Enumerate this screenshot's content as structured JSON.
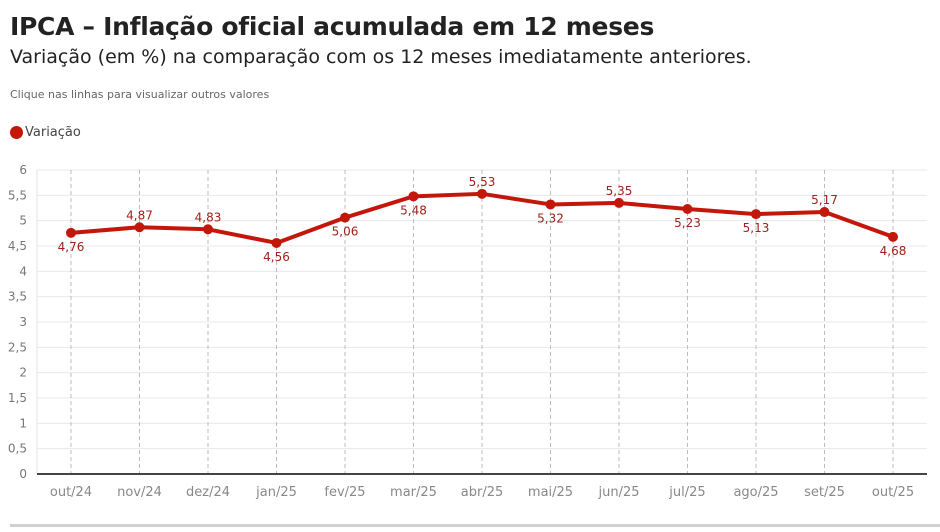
{
  "header": {
    "title": "IPCA – Inflação oficial acumulada em 12 meses",
    "subtitle": "Variação (em %) na comparação com os 12 meses imediatamente anteriores.",
    "hint": "Clique nas linhas para visualizar outros valores"
  },
  "legend": {
    "items": [
      {
        "label": "Variação",
        "color": "#c4170c"
      }
    ]
  },
  "chart_data": {
    "type": "line",
    "title": "IPCA – Inflação oficial acumulada em 12 meses",
    "subtitle": "Variação (em %) na comparação com os 12 meses imediatamente anteriores.",
    "xlabel": "",
    "ylabel": "",
    "categories": [
      "out/24",
      "nov/24",
      "dez/24",
      "jan/25",
      "fev/25",
      "mar/25",
      "abr/25",
      "mai/25",
      "jun/25",
      "jul/25",
      "ago/25",
      "set/25",
      "out/25"
    ],
    "series": [
      {
        "name": "Variação",
        "color": "#c4170c",
        "values": [
          4.76,
          4.87,
          4.83,
          4.56,
          5.06,
          5.48,
          5.53,
          5.32,
          5.35,
          5.23,
          5.13,
          5.17,
          4.68
        ],
        "labels": [
          "4,76",
          "4,87",
          "4,83",
          "4,56",
          "5,06",
          "5,48",
          "5,53",
          "5,32",
          "5,35",
          "5,23",
          "5,13",
          "5,17",
          "4,68"
        ],
        "label_position": [
          "below",
          "above",
          "above",
          "below",
          "below",
          "below",
          "above",
          "below",
          "above",
          "below",
          "below",
          "above",
          "below"
        ]
      }
    ],
    "ylim": [
      0,
      6
    ],
    "yticks": [
      0,
      0.5,
      1,
      1.5,
      2,
      2.5,
      3,
      3.5,
      4,
      4.5,
      5,
      5.5,
      6
    ],
    "ytick_labels": [
      "0",
      "0,5",
      "1",
      "1,5",
      "2",
      "2,5",
      "3",
      "3,5",
      "4",
      "4,5",
      "5",
      "5,5",
      "6"
    ],
    "grid": true,
    "legend_position": "top-left"
  }
}
